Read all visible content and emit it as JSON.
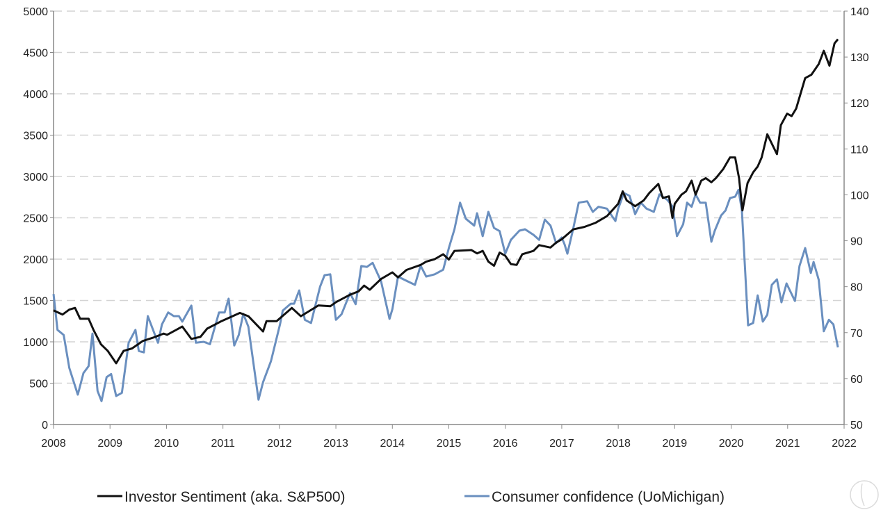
{
  "chart_data": {
    "type": "line",
    "title": "",
    "xlabel": "",
    "ylabel": "",
    "y2label": "",
    "xlim": [
      2008,
      2022
    ],
    "ylim": [
      0,
      5000
    ],
    "y2lim": [
      50,
      140
    ],
    "grid": true,
    "legend_position": "bottom",
    "x_ticks": [
      "2008",
      "2009",
      "2010",
      "2011",
      "2012",
      "2013",
      "2014",
      "2015",
      "2016",
      "2017",
      "2018",
      "2019",
      "2020",
      "2021",
      "2022"
    ],
    "y_ticks": [
      "0",
      "500",
      "1000",
      "1500",
      "2000",
      "2500",
      "3000",
      "3500",
      "4000",
      "4500",
      "5000"
    ],
    "y2_ticks": [
      "50",
      "60",
      "70",
      "80",
      "90",
      "100",
      "110",
      "120",
      "130",
      "140"
    ],
    "series": [
      {
        "name": "Investor Sentiment (aka. S&P500)",
        "axis": "left",
        "color": "#111111",
        "x": [
          2008.0,
          2008.16,
          2008.28,
          2008.38,
          2008.47,
          2008.62,
          2008.71,
          2008.84,
          2008.96,
          2009.11,
          2009.24,
          2009.39,
          2009.58,
          2009.76,
          2009.95,
          2010.01,
          2010.28,
          2010.44,
          2010.6,
          2010.72,
          2010.96,
          2011.3,
          2011.45,
          2011.71,
          2011.77,
          2011.95,
          2012.22,
          2012.38,
          2012.69,
          2012.9,
          2013.0,
          2013.25,
          2013.4,
          2013.5,
          2013.6,
          2013.8,
          2014.0,
          2014.1,
          2014.25,
          2014.5,
          2014.6,
          2014.75,
          2014.9,
          2015.0,
          2015.1,
          2015.4,
          2015.5,
          2015.6,
          2015.7,
          2015.8,
          2015.9,
          2016.0,
          2016.1,
          2016.2,
          2016.3,
          2016.5,
          2016.6,
          2016.8,
          2016.9,
          2017.0,
          2017.2,
          2017.4,
          2017.6,
          2017.8,
          2018.0,
          2018.08,
          2018.15,
          2018.3,
          2018.45,
          2018.55,
          2018.71,
          2018.79,
          2018.9,
          2018.96,
          2019.0,
          2019.12,
          2019.2,
          2019.3,
          2019.37,
          2019.47,
          2019.55,
          2019.65,
          2019.73,
          2019.86,
          2019.98,
          2020.07,
          2020.14,
          2020.2,
          2020.29,
          2020.39,
          2020.47,
          2020.54,
          2020.64,
          2020.81,
          2020.88,
          2020.99,
          2021.07,
          2021.15,
          2021.31,
          2021.42,
          2021.55,
          2021.64,
          2021.74,
          2021.83,
          2021.89
        ],
        "values": [
          1380,
          1330,
          1390,
          1410,
          1280,
          1280,
          1140,
          970,
          890,
          740,
          890,
          920,
          1010,
          1050,
          1100,
          1085,
          1185,
          1035,
          1060,
          1160,
          1245,
          1350,
          1310,
          1125,
          1250,
          1250,
          1410,
          1310,
          1440,
          1430,
          1480,
          1570,
          1610,
          1680,
          1630,
          1760,
          1840,
          1780,
          1870,
          1930,
          1970,
          2000,
          2060,
          1995,
          2100,
          2110,
          2070,
          2100,
          1970,
          1920,
          2080,
          2040,
          1940,
          1930,
          2060,
          2100,
          2170,
          2140,
          2200,
          2240,
          2360,
          2390,
          2440,
          2520,
          2670,
          2820,
          2710,
          2640,
          2710,
          2800,
          2910,
          2740,
          2760,
          2500,
          2670,
          2780,
          2820,
          2950,
          2780,
          2950,
          2980,
          2930,
          2980,
          3090,
          3230,
          3230,
          2980,
          2590,
          2920,
          3050,
          3120,
          3230,
          3510,
          3270,
          3620,
          3760,
          3730,
          3820,
          4190,
          4230,
          4360,
          4520,
          4340,
          4610,
          4660
        ]
      },
      {
        "name": "Consumer confidence (UoMichigan)",
        "axis": "right",
        "color": "#6a8fbf",
        "x": [
          2008.0,
          2008.07,
          2008.18,
          2008.28,
          2008.43,
          2008.53,
          2008.62,
          2008.69,
          2008.78,
          2008.85,
          2008.94,
          2009.02,
          2009.11,
          2009.21,
          2009.33,
          2009.45,
          2009.51,
          2009.6,
          2009.67,
          2009.85,
          2009.92,
          2010.03,
          2010.13,
          2010.22,
          2010.28,
          2010.44,
          2010.52,
          2010.66,
          2010.77,
          2010.93,
          2011.03,
          2011.1,
          2011.2,
          2011.28,
          2011.36,
          2011.45,
          2011.63,
          2011.71,
          2011.85,
          2012.01,
          2012.06,
          2012.2,
          2012.26,
          2012.35,
          2012.45,
          2012.56,
          2012.72,
          2012.8,
          2012.9,
          2013.0,
          2013.1,
          2013.25,
          2013.35,
          2013.45,
          2013.55,
          2013.65,
          2013.8,
          2013.95,
          2014.0,
          2014.1,
          2014.25,
          2014.4,
          2014.5,
          2014.6,
          2014.75,
          2014.9,
          2015.0,
          2015.1,
          2015.2,
          2015.3,
          2015.45,
          2015.5,
          2015.6,
          2015.7,
          2015.8,
          2015.9,
          2016.0,
          2016.1,
          2016.25,
          2016.35,
          2016.5,
          2016.6,
          2016.7,
          2016.8,
          2016.9,
          2017.0,
          2017.05,
          2017.1,
          2017.2,
          2017.3,
          2017.45,
          2017.55,
          2017.65,
          2017.8,
          2017.95,
          2018.0,
          2018.1,
          2018.2,
          2018.3,
          2018.4,
          2018.5,
          2018.63,
          2018.73,
          2018.87,
          2018.96,
          2019.04,
          2019.15,
          2019.22,
          2019.3,
          2019.37,
          2019.45,
          2019.55,
          2019.65,
          2019.71,
          2019.82,
          2019.9,
          2019.98,
          2020.07,
          2020.13,
          2020.19,
          2020.3,
          2020.39,
          2020.47,
          2020.56,
          2020.64,
          2020.72,
          2020.81,
          2020.89,
          2020.98,
          2021.13,
          2021.21,
          2021.31,
          2021.41,
          2021.46,
          2021.55,
          2021.64,
          2021.73,
          2021.81,
          2021.89
        ],
        "values": [
          78.4,
          70.6,
          69.5,
          62.3,
          56.5,
          61.2,
          62.7,
          69.8,
          57.3,
          55.1,
          60.3,
          61.0,
          56.2,
          56.9,
          67.8,
          70.6,
          66.0,
          65.7,
          73.6,
          67.8,
          71.8,
          74.4,
          73.6,
          73.6,
          72.4,
          75.9,
          67.8,
          68.0,
          67.5,
          74.4,
          74.4,
          77.4,
          67.2,
          69.5,
          74.1,
          71.3,
          55.4,
          59.2,
          63.8,
          71.8,
          74.8,
          76.3,
          76.3,
          79.2,
          72.8,
          72.1,
          80.0,
          82.5,
          82.7,
          72.8,
          74.0,
          78.6,
          76.2,
          84.5,
          84.3,
          85.2,
          81.2,
          73.0,
          75.1,
          82.2,
          81.3,
          80.4,
          84.6,
          82.2,
          82.7,
          83.7,
          88.4,
          92.5,
          98.3,
          94.8,
          93.3,
          96.0,
          91.0,
          96.3,
          92.8,
          92.1,
          87.2,
          90.2,
          92.2,
          92.5,
          91.3,
          90.2,
          94.6,
          93.3,
          89.5,
          90.7,
          89.2,
          87.2,
          92.5,
          98.3,
          98.6,
          96.3,
          97.4,
          97.0,
          94.3,
          97.0,
          100.4,
          99.8,
          95.8,
          98.3,
          97.0,
          96.3,
          100.1,
          98.9,
          97.5,
          91.0,
          93.6,
          98.3,
          97.4,
          100.1,
          98.3,
          98.3,
          89.8,
          92.2,
          95.5,
          96.6,
          99.3,
          99.6,
          101.1,
          96.6,
          71.6,
          72.1,
          78.1,
          72.4,
          73.9,
          80.4,
          81.6,
          76.6,
          80.7,
          76.9,
          84.5,
          88.4,
          83.0,
          85.4,
          81.5,
          70.3,
          72.8,
          71.8,
          66.8
        ]
      }
    ]
  }
}
